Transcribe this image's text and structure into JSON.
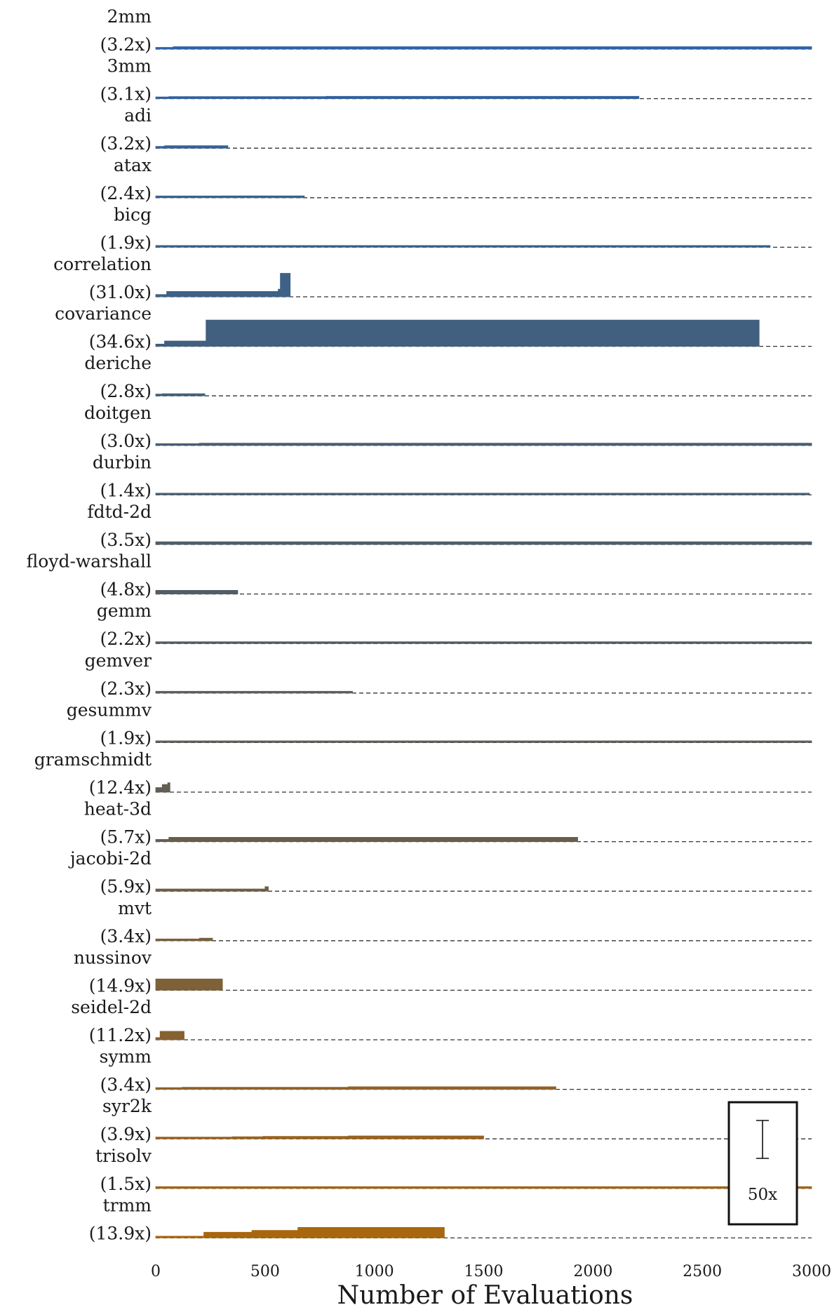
{
  "chart_data": {
    "type": "area",
    "xlabel": "Number of Evaluations",
    "xlim": [
      0,
      3000
    ],
    "xticks": [
      0,
      500,
      1000,
      1500,
      2000,
      2500,
      3000
    ],
    "scale_bar": {
      "label": "50x",
      "value": 50
    },
    "series": [
      {
        "name": "2mm",
        "speedup_label": "(3.2x)",
        "color": "#2e63a6",
        "steps": [
          [
            0,
            1
          ],
          [
            80,
            3.2
          ],
          [
            3000,
            3.2
          ]
        ]
      },
      {
        "name": "3mm",
        "speedup_label": "(3.1x)",
        "color": "#31629f",
        "steps": [
          [
            0,
            1
          ],
          [
            60,
            2.8
          ],
          [
            780,
            3.1
          ],
          [
            2210,
            3.1
          ]
        ]
      },
      {
        "name": "adi",
        "speedup_label": "(3.2x)",
        "color": "#346298",
        "steps": [
          [
            0,
            1
          ],
          [
            40,
            3.2
          ],
          [
            330,
            3.2
          ]
        ]
      },
      {
        "name": "atax",
        "speedup_label": "(2.4x)",
        "color": "#386291",
        "steps": [
          [
            0,
            1
          ],
          [
            40,
            2.0
          ],
          [
            300,
            2.4
          ],
          [
            680,
            2.4
          ]
        ]
      },
      {
        "name": "bicg",
        "speedup_label": "(1.9x)",
        "color": "#3b618b",
        "steps": [
          [
            0,
            1
          ],
          [
            300,
            1.9
          ],
          [
            2810,
            1.9
          ]
        ]
      },
      {
        "name": "correlation",
        "speedup_label": "(31.0x)",
        "color": "#3e6185",
        "steps": [
          [
            0,
            3
          ],
          [
            50,
            7
          ],
          [
            560,
            10
          ],
          [
            570,
            31
          ],
          [
            615,
            31
          ]
        ]
      },
      {
        "name": "covariance",
        "speedup_label": "(34.6x)",
        "color": "#41607f",
        "steps": [
          [
            0,
            3
          ],
          [
            40,
            7
          ],
          [
            230,
            34.6
          ],
          [
            2760,
            34.6
          ]
        ]
      },
      {
        "name": "deriche",
        "speedup_label": "(2.8x)",
        "color": "#44607a",
        "steps": [
          [
            0,
            1
          ],
          [
            30,
            2.8
          ],
          [
            225,
            2.8
          ]
        ]
      },
      {
        "name": "doitgen",
        "speedup_label": "(3.0x)",
        "color": "#475f75",
        "steps": [
          [
            0,
            1
          ],
          [
            200,
            3.0
          ],
          [
            3000,
            3.0
          ]
        ]
      },
      {
        "name": "durbin",
        "speedup_label": "(1.4x)",
        "color": "#4a5f70",
        "steps": [
          [
            0,
            1
          ],
          [
            660,
            1.4
          ],
          [
            2990,
            1.4
          ]
        ]
      },
      {
        "name": "fdtd-2d",
        "speedup_label": "(3.5x)",
        "color": "#4d5e6b",
        "steps": [
          [
            0,
            3.5
          ],
          [
            3000,
            3.5
          ]
        ]
      },
      {
        "name": "floyd-warshall",
        "speedup_label": "(4.8x)",
        "color": "#515e67",
        "steps": [
          [
            0,
            4.8
          ],
          [
            375,
            4.8
          ]
        ]
      },
      {
        "name": "gemm",
        "speedup_label": "(2.2x)",
        "color": "#555e62",
        "steps": [
          [
            0,
            2.2
          ],
          [
            3000,
            2.2
          ]
        ]
      },
      {
        "name": "gemver",
        "speedup_label": "(2.3x)",
        "color": "#5a5e5d",
        "steps": [
          [
            0,
            1
          ],
          [
            140,
            1.8
          ],
          [
            750,
            2.3
          ],
          [
            900,
            2.3
          ]
        ]
      },
      {
        "name": "gesummv",
        "speedup_label": "(1.9x)",
        "color": "#5e5e58",
        "steps": [
          [
            0,
            1.9
          ],
          [
            3000,
            1.9
          ]
        ]
      },
      {
        "name": "gramschmidt",
        "speedup_label": "(12.4x)",
        "color": "#635e53",
        "steps": [
          [
            0,
            6
          ],
          [
            30,
            10
          ],
          [
            55,
            12.4
          ],
          [
            65,
            12.4
          ]
        ]
      },
      {
        "name": "heat-3d",
        "speedup_label": "(5.7x)",
        "color": "#695e4d",
        "steps": [
          [
            0,
            3
          ],
          [
            60,
            5.7
          ],
          [
            1930,
            5.7
          ]
        ]
      },
      {
        "name": "jacobi-2d",
        "speedup_label": "(5.9x)",
        "color": "#6f5f47",
        "steps": [
          [
            0,
            3
          ],
          [
            500,
            5.9
          ],
          [
            515,
            5.9
          ]
        ]
      },
      {
        "name": "mvt",
        "speedup_label": "(3.4x)",
        "color": "#765f40",
        "steps": [
          [
            0,
            1
          ],
          [
            200,
            3.4
          ],
          [
            260,
            3.4
          ]
        ]
      },
      {
        "name": "nussinov",
        "speedup_label": "(14.9x)",
        "color": "#7e6039",
        "steps": [
          [
            0,
            14.9
          ],
          [
            305,
            14.9
          ]
        ]
      },
      {
        "name": "seidel-2d",
        "speedup_label": "(11.2x)",
        "color": "#866131",
        "steps": [
          [
            0,
            3
          ],
          [
            20,
            11.2
          ],
          [
            130,
            11.2
          ]
        ]
      },
      {
        "name": "symm",
        "speedup_label": "(3.4x)",
        "color": "#8e6228",
        "steps": [
          [
            0,
            1
          ],
          [
            120,
            2.8
          ],
          [
            880,
            3.4
          ],
          [
            1830,
            3.4
          ]
        ]
      },
      {
        "name": "syr2k",
        "speedup_label": "(3.9x)",
        "color": "#976320",
        "steps": [
          [
            0,
            1
          ],
          [
            350,
            2.8
          ],
          [
            490,
            3.3
          ],
          [
            880,
            3.9
          ],
          [
            1500,
            3.9
          ]
        ]
      },
      {
        "name": "trisolv",
        "speedup_label": "(1.5x)",
        "color": "#9f6518",
        "steps": [
          [
            0,
            1.5
          ],
          [
            3000,
            1.5
          ]
        ]
      },
      {
        "name": "trmm",
        "speedup_label": "(13.9x)",
        "color": "#a8670f",
        "steps": [
          [
            0,
            2
          ],
          [
            220,
            7.5
          ],
          [
            440,
            10
          ],
          [
            650,
            13.9
          ],
          [
            1320,
            13.9
          ]
        ]
      }
    ]
  }
}
